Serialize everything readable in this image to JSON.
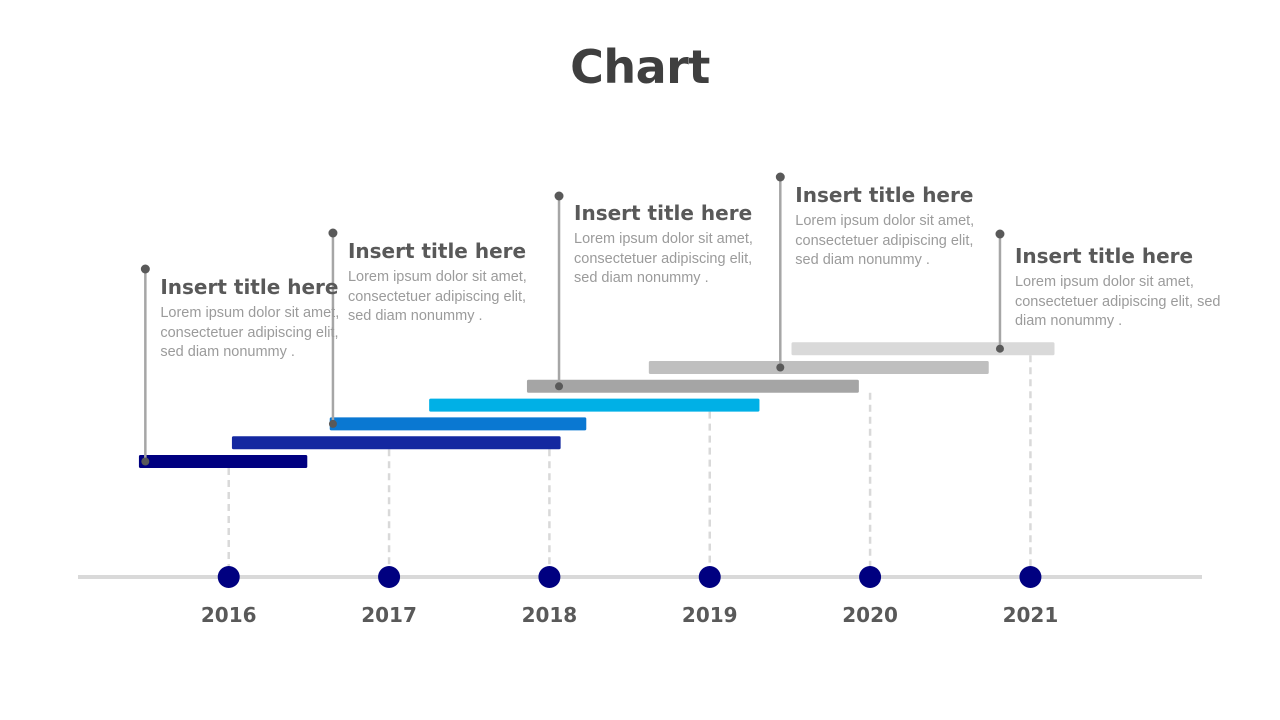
{
  "chart_data": {
    "type": "gantt-timeline",
    "title": "Chart",
    "x_ticks": [
      2016,
      2017,
      2018,
      2019,
      2020,
      2021
    ],
    "xlim": [
      2015.06,
      2022.07
    ],
    "colors": {
      "axis": "#d9d9d9",
      "year_dot": "#000080",
      "year_label": "#595959",
      "guide_line": "#d9d9d9",
      "pin": "#a6a6a6",
      "pin_dot": "#595959"
    },
    "bars": [
      {
        "start": 2015.44,
        "end": 2016.49,
        "color": "#000080"
      },
      {
        "start": 2016.02,
        "end": 2018.07,
        "color": "#1428a0"
      },
      {
        "start": 2016.63,
        "end": 2018.23,
        "color": "#0a78d2"
      },
      {
        "start": 2017.25,
        "end": 2019.31,
        "color": "#00b0e6"
      },
      {
        "start": 2017.86,
        "end": 2019.93,
        "color": "#a5a5a5"
      },
      {
        "start": 2018.62,
        "end": 2020.74,
        "color": "#bfbfbf"
      },
      {
        "start": 2019.51,
        "end": 2021.15,
        "color": "#d9d9d9"
      }
    ],
    "callouts": [
      {
        "bar": 0,
        "x": 2015.48,
        "title": "Insert title here",
        "text": "Lorem ipsum dolor sit amet, consectetuer adipiscing elit, sed diam nonummy ."
      },
      {
        "bar": 2,
        "x": 2016.65,
        "title": "Insert title here",
        "text": "Lorem ipsum dolor sit amet, consectetuer adipiscing elit, sed diam nonummy ."
      },
      {
        "bar": 4,
        "x": 2018.06,
        "title": "Insert title here",
        "text": "Lorem ipsum dolor sit amet, consectetuer adipiscing elit, sed diam nonummy ."
      },
      {
        "bar": 5,
        "x": 2019.44,
        "title": "Insert title here",
        "text": "Lorem ipsum dolor sit amet, consectetuer adipiscing elit, sed diam nonummy ."
      },
      {
        "bar": 6,
        "x": 2020.81,
        "title": "Insert title here",
        "text": "Lorem ipsum dolor sit amet, consectetuer adipiscing elit, sed diam nonummy ."
      }
    ]
  }
}
